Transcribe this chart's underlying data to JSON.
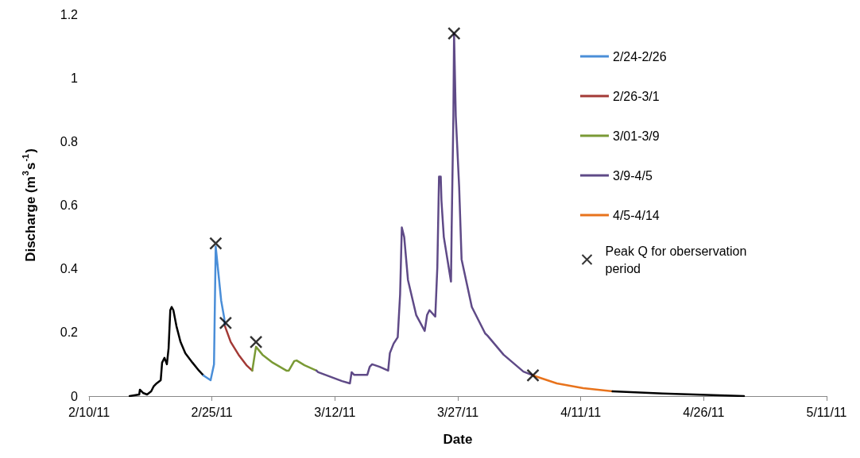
{
  "chart_data": {
    "type": "line",
    "xlabel": "Date",
    "ylabel": "Discharge (m$^{3}$s$^{-1}$)",
    "xlim": [
      "2011-02-10",
      "2011-05-11"
    ],
    "xticks": [
      {
        "value": "2011-02-10",
        "label": "2/10/11"
      },
      {
        "value": "2011-02-25",
        "label": "2/25/11"
      },
      {
        "value": "2011-03-12",
        "label": "3/12/11"
      },
      {
        "value": "2011-03-27",
        "label": "3/27/11"
      },
      {
        "value": "2011-04-11",
        "label": "4/11/11"
      },
      {
        "value": "2011-04-26",
        "label": "4/26/11"
      },
      {
        "value": "2011-05-11",
        "label": "5/11/11"
      }
    ],
    "ylim": [
      0,
      1.2
    ],
    "yticks": [
      0,
      0.2,
      0.4,
      0.6,
      0.8,
      1,
      1.2
    ],
    "grid": false,
    "legend": "right",
    "line_style": "solid",
    "series": [
      {
        "color": "#000000",
        "x": [
          "2011-02-14T23:00",
          "2011-02-16T03:00",
          "2011-02-16T05:00",
          "2011-02-16T14:00",
          "2011-02-17T02:00",
          "2011-02-17T14:00",
          "2011-02-17T21:00",
          "2011-02-18T06:00",
          "2011-02-18T18:00",
          "2011-02-18T22:00",
          "2011-02-19T05:00",
          "2011-02-19T12:00",
          "2011-02-19T17:00",
          "2011-02-19T22:00",
          "2011-02-20T02:00",
          "2011-02-20T07:00",
          "2011-02-20T16:00",
          "2011-02-21T04:00",
          "2011-02-21T18:00",
          "2011-02-22T15:00",
          "2011-02-23T10:00",
          "2011-02-23T23:00"
        ],
        "values": [
          0,
          0.005,
          0.02,
          0.01,
          0.005,
          0.015,
          0.03,
          0.04,
          0.05,
          0.105,
          0.12,
          0.1,
          0.15,
          0.27,
          0.28,
          0.27,
          0.22,
          0.17,
          0.135,
          0.105,
          0.08,
          0.065
        ]
      },
      {
        "name": "2/24-2/26",
        "color": "#4a8ed8",
        "x": [
          "2011-02-23T23:00",
          "2011-02-24T20:00",
          "2011-02-25T06:00",
          "2011-02-25T11:00",
          "2011-02-26T03:00",
          "2011-02-26T12:00",
          "2011-02-26T14:00"
        ],
        "values": [
          0.065,
          0.05,
          0.1,
          0.47,
          0.3,
          0.245,
          0.22
        ]
      },
      {
        "name": "2/26-3/1",
        "color": "#a33a36",
        "x": [
          "2011-02-26T14:00",
          "2011-02-27T07:00",
          "2011-02-28T06:00",
          "2011-03-01T05:00",
          "2011-03-01T22:00"
        ],
        "values": [
          0.22,
          0.17,
          0.13,
          0.097,
          0.08
        ]
      },
      {
        "name": "3/01-3/9",
        "color": "#7a9a35",
        "x": [
          "2011-03-01T22:00",
          "2011-03-02T09:00",
          "2011-03-03T04:00",
          "2011-03-04T10:00",
          "2011-03-06T02:00",
          "2011-03-06T09:00",
          "2011-03-07T01:00",
          "2011-03-07T08:00",
          "2011-03-08T07:00",
          "2011-03-09T18:00"
        ],
        "values": [
          0.08,
          0.155,
          0.13,
          0.105,
          0.08,
          0.08,
          0.11,
          0.112,
          0.097,
          0.08
        ]
      },
      {
        "name": "3/9-4/5",
        "color": "#5f4a87",
        "x": [
          "2011-03-09T18:00",
          "2011-03-09T23:00",
          "2011-03-12T21:00",
          "2011-03-13T20:00",
          "2011-03-14T01:00",
          "2011-03-14T08:00",
          "2011-03-15T23:00",
          "2011-03-16T06:00",
          "2011-03-16T13:00",
          "2011-03-17T11:00",
          "2011-03-18T12:00",
          "2011-03-18T17:00",
          "2011-03-19T04:00",
          "2011-03-19T16:00",
          "2011-03-19T23:00",
          "2011-03-20T04:00",
          "2011-03-20T11:00",
          "2011-03-20T22:00",
          "2011-03-21T22:00",
          "2011-03-22T23:00",
          "2011-03-23T06:00",
          "2011-03-23T13:00",
          "2011-03-24T06:00",
          "2011-03-24T12:00",
          "2011-03-24T17:00",
          "2011-03-24T22:00",
          "2011-03-25T00:00",
          "2011-03-25T07:00",
          "2011-03-26T04:00",
          "2011-03-26T06:00",
          "2011-03-26T11:00",
          "2011-03-26T13:00",
          "2011-03-26T18:00",
          "2011-03-27T04:00",
          "2011-03-27T11:00",
          "2011-03-28T17:00",
          "2011-03-30T08:00",
          "2011-03-30T15:00",
          "2011-04-01T14:00",
          "2011-04-04T00:00",
          "2011-04-05T04:00"
        ],
        "values": [
          0.08,
          0.075,
          0.047,
          0.04,
          0.075,
          0.067,
          0.067,
          0.092,
          0.1,
          0.092,
          0.08,
          0.135,
          0.165,
          0.185,
          0.32,
          0.53,
          0.5,
          0.365,
          0.255,
          0.205,
          0.255,
          0.27,
          0.25,
          0.405,
          0.69,
          0.69,
          0.615,
          0.5,
          0.36,
          0.53,
          0.88,
          1.14,
          0.88,
          0.655,
          0.43,
          0.28,
          0.197,
          0.19,
          0.13,
          0.077,
          0.065
        ]
      },
      {
        "name": "4/5-4/14",
        "color": "#e8731c",
        "x": [
          "2011-04-05T04:00",
          "2011-04-08T02:00",
          "2011-04-11T07:00",
          "2011-04-14T21:00"
        ],
        "values": [
          0.065,
          0.04,
          0.025,
          0.015
        ]
      },
      {
        "color": "#000000",
        "x": [
          "2011-04-14T21:00",
          "2011-04-21T00:00",
          "2011-04-30T22:00"
        ],
        "values": [
          0.015,
          0.008,
          0
        ]
      },
      {
        "name": "Peak Q for oberservation period",
        "color": "#000000",
        "type": "scatter",
        "marker": "cross",
        "x": [
          "2011-02-25T11:00",
          "2011-02-26T16:00",
          "2011-03-02T09:00",
          "2011-03-26T13:00",
          "2011-04-05T04:00"
        ],
        "values": [
          0.48,
          0.23,
          0.17,
          1.14,
          0.065
        ]
      }
    ]
  }
}
